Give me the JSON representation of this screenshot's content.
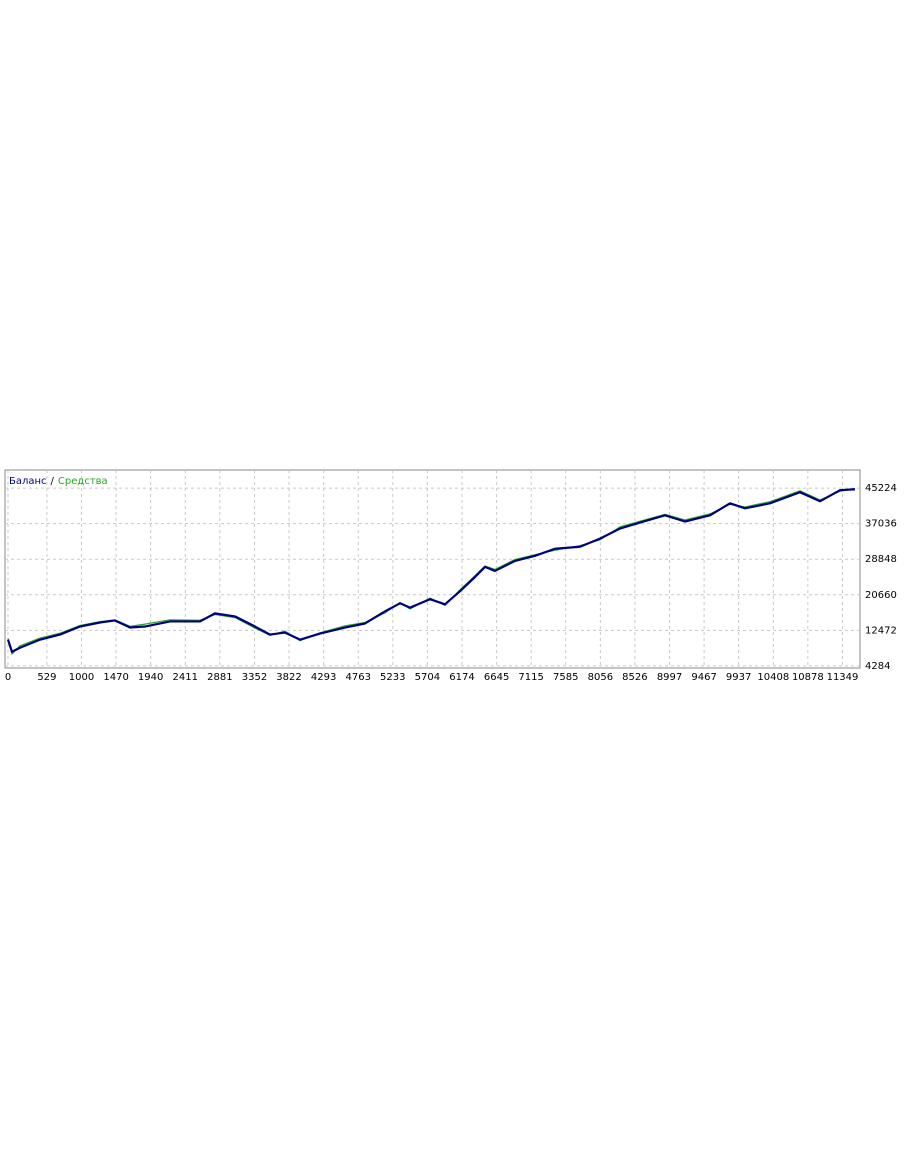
{
  "chart_data": {
    "type": "line",
    "legend_separator": "/",
    "x": [
      0,
      54,
      163,
      435,
      707,
      979,
      1251,
      1455,
      1659,
      1863,
      2203,
      2611,
      2815,
      3087,
      3359,
      3563,
      3767,
      3971,
      4243,
      4583,
      4855,
      5127,
      5331,
      5467,
      5739,
      5943,
      6147,
      6351,
      6487,
      6623,
      6895,
      7167,
      7439,
      7779,
      8051,
      8323,
      8595,
      8935,
      9207,
      9547,
      9819,
      10023,
      10363,
      10771,
      11043,
      11315,
      11519
    ],
    "series": [
      {
        "name": "Баланс",
        "color": "#000080",
        "values": [
          10330,
          7540,
          8470,
          10330,
          11500,
          13350,
          14280,
          14750,
          13120,
          13350,
          14520,
          14520,
          16380,
          15680,
          13350,
          11500,
          11960,
          10330,
          11730,
          13120,
          14050,
          16840,
          18700,
          17700,
          19640,
          18470,
          21500,
          24750,
          27080,
          26150,
          28470,
          29640,
          31260,
          31730,
          33590,
          35910,
          37300,
          38960,
          37540,
          38960,
          41730,
          40570,
          41730,
          44290,
          42190,
          44750,
          44970
        ]
      },
      {
        "name": "Средства",
        "color": "#22aa22",
        "values": [
          10600,
          7000,
          8900,
          10700,
          11800,
          13600,
          14500,
          14900,
          13400,
          13900,
          14900,
          14800,
          16100,
          15400,
          13000,
          11300,
          12300,
          10100,
          11900,
          13500,
          14300,
          16500,
          18900,
          17400,
          19900,
          18200,
          21800,
          25100,
          27300,
          26500,
          28800,
          29900,
          30900,
          32000,
          33300,
          36300,
          37600,
          39200,
          37900,
          39300,
          41500,
          40900,
          42100,
          44600,
          42500,
          44500,
          45100
        ]
      }
    ],
    "xlim": [
      0,
      11560
    ],
    "ylim": [
      3800,
      49400
    ],
    "xticks": [
      0,
      529,
      1000,
      1470,
      1940,
      2411,
      2881,
      3352,
      3822,
      4293,
      4763,
      5233,
      5704,
      6174,
      6645,
      7115,
      7585,
      8056,
      8526,
      8997,
      9467,
      9937,
      10408,
      10878,
      11349
    ],
    "yticks": [
      4284,
      12472,
      20660,
      28848,
      37036,
      45224
    ],
    "grid": true
  }
}
